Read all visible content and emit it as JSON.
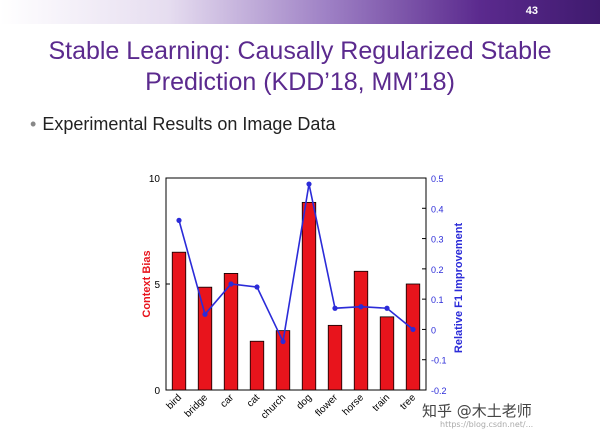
{
  "slide": {
    "page_number": "43",
    "title_line1": "Stable Learning: Causally Regularized Stable",
    "title_line2": "Prediction (KDD’18, MM’18)",
    "bullet": "Experimental Results on Image Data"
  },
  "watermark": {
    "text": "知乎 @木土老师",
    "url": "https://blog.csdn.net/..."
  },
  "chart_data": {
    "type": "bar",
    "categories": [
      "bird",
      "bridge",
      "car",
      "cat",
      "church",
      "dog",
      "flower",
      "horse",
      "train",
      "tree"
    ],
    "series": [
      {
        "name": "Context Bias",
        "chart_type": "bar",
        "axis": "left",
        "color": "#e8141c",
        "values": [
          6.5,
          4.85,
          5.5,
          2.3,
          2.8,
          8.85,
          3.05,
          5.6,
          3.45,
          5.0
        ]
      },
      {
        "name": "Relative F1 Improvement",
        "chart_type": "line",
        "axis": "right",
        "color": "#2b2bd8",
        "values": [
          0.36,
          0.05,
          0.15,
          0.14,
          -0.04,
          0.48,
          0.07,
          0.075,
          0.07,
          0.0
        ]
      }
    ],
    "ylabel": "Context Bias",
    "ylabel_right": "Relative F1 Improvement",
    "ylim": [
      0,
      10
    ],
    "ylim_right": [
      -0.2,
      0.5
    ],
    "yticks": [
      "0",
      "5",
      "10"
    ],
    "yticks_right": [
      "-0.2",
      "-0.1",
      "0",
      "0.1",
      "0.2",
      "0.3",
      "0.4",
      "0.5"
    ],
    "grid": false
  }
}
